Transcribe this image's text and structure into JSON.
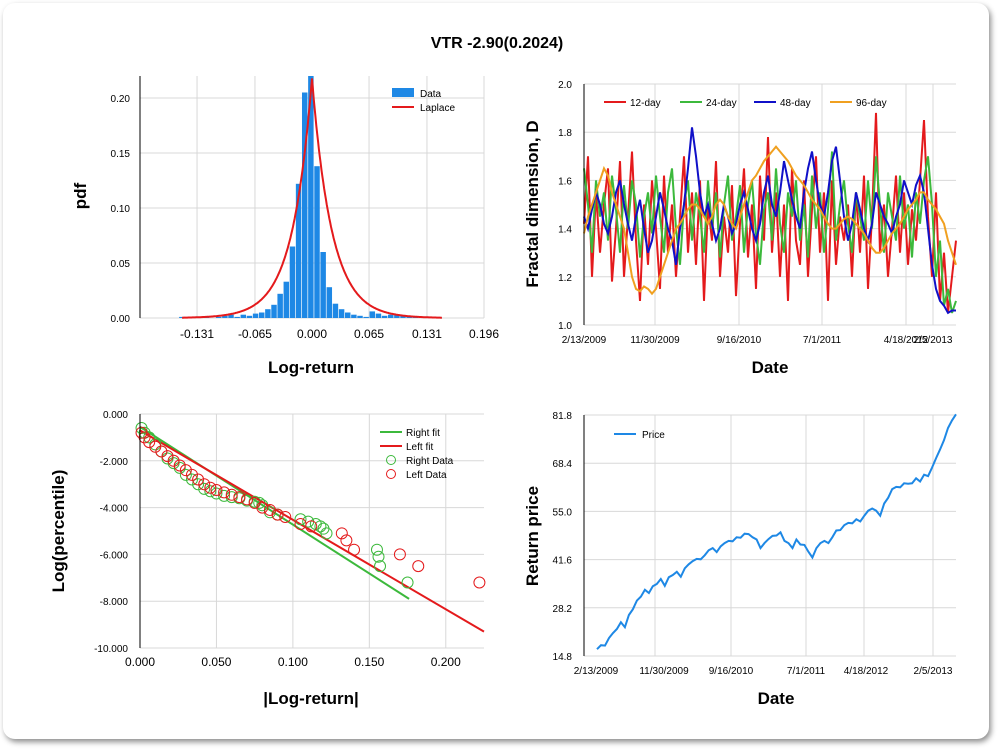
{
  "title": "VTR -2.90(0.2024)",
  "panels": {
    "hist": {
      "ylabel": "pdf",
      "xlabel": "Log-return",
      "yticks": [
        "0.00",
        "0.05",
        "0.10",
        "0.15",
        "0.20"
      ],
      "xticks": [
        "-0.131",
        "-0.065",
        "0.000",
        "0.065",
        "0.131",
        "0.196"
      ],
      "legend": [
        "Data",
        "Laplace"
      ]
    },
    "fractal": {
      "ylabel": "Fractal dimension, D",
      "xlabel": "Date",
      "yticks": [
        "1.0",
        "1.2",
        "1.4",
        "1.6",
        "1.8",
        "2.0"
      ],
      "xticks": [
        "2/13/2009",
        "11/30/2009",
        "9/16/2010",
        "7/1/2011",
        "4/18/2012",
        "2/5/2013"
      ],
      "legend": [
        "12-day",
        "24-day",
        "48-day",
        "96-day"
      ]
    },
    "tail": {
      "ylabel": "Log(percentile)",
      "xlabel": "|Log-return|",
      "yticks": [
        "-10.000",
        "-8.000",
        "-6.000",
        "-4.000",
        "-2.000",
        "0.000"
      ],
      "xticks": [
        "0.000",
        "0.050",
        "0.100",
        "0.150",
        "0.200"
      ],
      "legend": [
        "Right fit",
        "Left fit",
        "Right Data",
        "Left Data"
      ]
    },
    "price": {
      "ylabel": "Return price",
      "xlabel": "Date",
      "yticks": [
        "14.8",
        "28.2",
        "41.6",
        "55.0",
        "68.4",
        "81.8"
      ],
      "xticks": [
        "2/13/2009",
        "11/30/2009",
        "9/16/2010",
        "7/1/2011",
        "4/18/2012",
        "2/5/2013"
      ],
      "legend": [
        "Price"
      ]
    }
  },
  "colors": {
    "blue": "#1e88e5",
    "red": "#e41a1c",
    "green": "#3cb93c",
    "navy": "#1010c8",
    "orange": "#f0a020",
    "price": "#1e88e5"
  },
  "chart_data": [
    {
      "type": "bar",
      "title": "VTR -2.90(0.2024)",
      "xlabel": "Log-return",
      "ylabel": "pdf",
      "xlim": [
        -0.196,
        0.196
      ],
      "ylim": [
        0,
        0.22
      ],
      "bins": [
        -0.148,
        -0.141,
        -0.134,
        -0.127,
        -0.12,
        -0.113,
        -0.106,
        -0.099,
        -0.092,
        -0.085,
        -0.078,
        -0.071,
        -0.064,
        -0.057,
        -0.05,
        -0.043,
        -0.036,
        -0.029,
        -0.022,
        -0.015,
        -0.008,
        -0.001,
        0.006,
        0.013,
        0.02,
        0.027,
        0.034,
        0.041,
        0.048,
        0.055,
        0.062,
        0.069,
        0.076,
        0.083,
        0.09,
        0.097,
        0.104,
        0.111,
        0.118
      ],
      "values": [
        0.001,
        0,
        0.001,
        0,
        0.001,
        0,
        0.001,
        0.002,
        0.003,
        0.001,
        0.003,
        0.002,
        0.004,
        0.005,
        0.008,
        0.012,
        0.022,
        0.033,
        0.065,
        0.122,
        0.205,
        0.22,
        0.138,
        0.06,
        0.028,
        0.013,
        0.008,
        0.005,
        0.003,
        0.002,
        0.001,
        0.006,
        0.004,
        0.002,
        0.003,
        0.003,
        0.002,
        0.001,
        0.001
      ],
      "series": [
        {
          "name": "Data"
        },
        {
          "name": "Laplace",
          "scale": 0.0225
        }
      ]
    },
    {
      "type": "line",
      "xlabel": "Date",
      "ylabel": "Fractal dimension, D",
      "ylim": [
        1.0,
        2.0
      ],
      "x_range": [
        "2/13/2009",
        "5/1/2013"
      ],
      "series": [
        {
          "name": "12-day",
          "values": [
            1.42,
            1.7,
            1.2,
            1.55,
            1.3,
            1.5,
            1.65,
            1.18,
            1.4,
            1.68,
            1.2,
            1.45,
            1.72,
            1.35,
            1.1,
            1.5,
            1.25,
            1.6,
            1.4,
            1.15,
            1.62,
            1.3,
            1.5,
            1.2,
            1.45,
            1.7,
            1.3,
            1.55,
            1.25,
            1.6,
            1.1,
            1.5,
            1.35,
            1.68,
            1.2,
            1.45,
            1.3,
            1.58,
            1.12,
            1.42,
            1.65,
            1.28,
            1.5,
            1.15,
            1.62,
            1.35,
            1.78,
            1.3,
            1.55,
            1.2,
            1.5,
            1.1,
            1.65,
            1.35,
            1.25,
            1.6,
            1.2,
            1.48,
            1.7,
            1.3,
            1.55,
            1.1,
            1.6,
            1.25,
            1.45,
            1.35,
            1.5,
            1.2,
            1.55,
            1.3,
            1.62,
            1.15,
            1.45,
            1.88,
            1.3,
            1.5,
            1.2,
            1.4,
            1.62,
            1.3,
            1.55,
            1.25,
            1.48,
            1.35,
            1.6,
            1.85,
            1.45,
            1.2,
            1.55,
            1.1,
            1.3,
            1.05,
            1.2,
            1.35
          ]
        },
        {
          "name": "24-day",
          "values": [
            1.65,
            1.5,
            1.3,
            1.6,
            1.45,
            1.55,
            1.35,
            1.62,
            1.48,
            1.3,
            1.58,
            1.4,
            1.6,
            1.5,
            1.28,
            1.45,
            1.55,
            1.38,
            1.62,
            1.45,
            1.3,
            1.55,
            1.65,
            1.4,
            1.25,
            1.5,
            1.6,
            1.35,
            1.55,
            1.45,
            1.3,
            1.6,
            1.4,
            1.55,
            1.28,
            1.5,
            1.62,
            1.35,
            1.45,
            1.58,
            1.3,
            1.5,
            1.6,
            1.38,
            1.25,
            1.48,
            1.55,
            1.35,
            1.65,
            1.42,
            1.3,
            1.55,
            1.45,
            1.6,
            1.35,
            1.5,
            1.28,
            1.62,
            1.4,
            1.55,
            1.3,
            1.48,
            1.72,
            1.35,
            1.5,
            1.6,
            1.42,
            1.3,
            1.55,
            1.45,
            1.35,
            1.6,
            1.4,
            1.7,
            1.5,
            1.3,
            1.55,
            1.45,
            1.35,
            1.62,
            1.4,
            1.5,
            1.28,
            1.55,
            1.42,
            1.6,
            1.7,
            1.5,
            1.2,
            1.35,
            1.08,
            1.15,
            1.05,
            1.1
          ]
        },
        {
          "name": "48-day",
          "values": [
            1.45,
            1.4,
            1.48,
            1.55,
            1.5,
            1.42,
            1.38,
            1.45,
            1.55,
            1.6,
            1.5,
            1.42,
            1.35,
            1.45,
            1.52,
            1.4,
            1.3,
            1.35,
            1.45,
            1.55,
            1.48,
            1.4,
            1.35,
            1.25,
            1.4,
            1.5,
            1.65,
            1.82,
            1.7,
            1.55,
            1.45,
            1.5,
            1.42,
            1.35,
            1.4,
            1.5,
            1.45,
            1.38,
            1.42,
            1.5,
            1.55,
            1.48,
            1.4,
            1.35,
            1.42,
            1.55,
            1.62,
            1.5,
            1.45,
            1.55,
            1.68,
            1.6,
            1.52,
            1.45,
            1.4,
            1.55,
            1.65,
            1.72,
            1.6,
            1.5,
            1.45,
            1.55,
            1.68,
            1.74,
            1.6,
            1.45,
            1.35,
            1.42,
            1.55,
            1.48,
            1.4,
            1.35,
            1.42,
            1.55,
            1.5,
            1.45,
            1.42,
            1.38,
            1.45,
            1.5,
            1.6,
            1.55,
            1.5,
            1.58,
            1.62,
            1.55,
            1.4,
            1.25,
            1.15,
            1.1,
            1.08,
            1.05,
            1.06,
            1.06
          ]
        },
        {
          "name": "96-day",
          "values": [
            1.38,
            1.45,
            1.5,
            1.55,
            1.6,
            1.65,
            1.62,
            1.55,
            1.5,
            1.45,
            1.4,
            1.3,
            1.2,
            1.15,
            1.14,
            1.16,
            1.15,
            1.13,
            1.15,
            1.2,
            1.25,
            1.3,
            1.35,
            1.4,
            1.42,
            1.45,
            1.48,
            1.5,
            1.5,
            1.48,
            1.45,
            1.42,
            1.45,
            1.5,
            1.52,
            1.5,
            1.45,
            1.42,
            1.4,
            1.45,
            1.5,
            1.55,
            1.6,
            1.62,
            1.65,
            1.68,
            1.7,
            1.72,
            1.74,
            1.72,
            1.7,
            1.68,
            1.65,
            1.62,
            1.6,
            1.58,
            1.55,
            1.52,
            1.5,
            1.48,
            1.45,
            1.42,
            1.4,
            1.4,
            1.42,
            1.44,
            1.45,
            1.44,
            1.42,
            1.4,
            1.38,
            1.35,
            1.32,
            1.3,
            1.3,
            1.32,
            1.35,
            1.38,
            1.4,
            1.42,
            1.45,
            1.48,
            1.5,
            1.52,
            1.55,
            1.55,
            1.52,
            1.5,
            1.48,
            1.45,
            1.42,
            1.35,
            1.3,
            1.25
          ]
        }
      ]
    },
    {
      "type": "scatter",
      "xlabel": "|Log-return|",
      "ylabel": "Log(percentile)",
      "xlim": [
        0,
        0.225
      ],
      "ylim": [
        -10,
        0
      ],
      "series": [
        {
          "name": "Right fit",
          "line": [
            [
              0,
              -0.55
            ],
            [
              0.176,
              -7.9
            ]
          ]
        },
        {
          "name": "Left fit",
          "line": [
            [
              0,
              -0.7
            ],
            [
              0.225,
              -9.3
            ]
          ]
        },
        {
          "name": "Right Data",
          "points": [
            [
              0.001,
              -0.6
            ],
            [
              0.003,
              -0.8
            ],
            [
              0.006,
              -1.0
            ],
            [
              0.01,
              -1.3
            ],
            [
              0.014,
              -1.6
            ],
            [
              0.018,
              -1.9
            ],
            [
              0.022,
              -2.1
            ],
            [
              0.026,
              -2.3
            ],
            [
              0.03,
              -2.6
            ],
            [
              0.034,
              -2.8
            ],
            [
              0.038,
              -3.0
            ],
            [
              0.042,
              -3.2
            ],
            [
              0.046,
              -3.3
            ],
            [
              0.05,
              -3.4
            ],
            [
              0.055,
              -3.5
            ],
            [
              0.06,
              -3.55
            ],
            [
              0.065,
              -3.6
            ],
            [
              0.07,
              -3.7
            ],
            [
              0.075,
              -3.75
            ],
            [
              0.078,
              -3.8
            ],
            [
              0.08,
              -3.9
            ],
            [
              0.085,
              -4.2
            ],
            [
              0.09,
              -4.3
            ],
            [
              0.105,
              -4.5
            ],
            [
              0.11,
              -4.6
            ],
            [
              0.115,
              -4.7
            ],
            [
              0.118,
              -4.8
            ],
            [
              0.12,
              -4.9
            ],
            [
              0.122,
              -5.1
            ],
            [
              0.155,
              -5.8
            ],
            [
              0.156,
              -6.1
            ],
            [
              0.157,
              -6.5
            ],
            [
              0.175,
              -7.2
            ]
          ]
        },
        {
          "name": "Left Data",
          "points": [
            [
              0.001,
              -0.8
            ],
            [
              0.003,
              -1.0
            ],
            [
              0.006,
              -1.2
            ],
            [
              0.01,
              -1.4
            ],
            [
              0.014,
              -1.6
            ],
            [
              0.018,
              -1.8
            ],
            [
              0.022,
              -2.0
            ],
            [
              0.026,
              -2.2
            ],
            [
              0.03,
              -2.4
            ],
            [
              0.034,
              -2.6
            ],
            [
              0.038,
              -2.8
            ],
            [
              0.042,
              -3.0
            ],
            [
              0.046,
              -3.15
            ],
            [
              0.05,
              -3.25
            ],
            [
              0.055,
              -3.35
            ],
            [
              0.06,
              -3.45
            ],
            [
              0.065,
              -3.55
            ],
            [
              0.07,
              -3.65
            ],
            [
              0.075,
              -3.8
            ],
            [
              0.08,
              -4.0
            ],
            [
              0.085,
              -4.1
            ],
            [
              0.09,
              -4.3
            ],
            [
              0.095,
              -4.4
            ],
            [
              0.105,
              -4.7
            ],
            [
              0.112,
              -4.8
            ],
            [
              0.132,
              -5.1
            ],
            [
              0.135,
              -5.4
            ],
            [
              0.14,
              -5.8
            ],
            [
              0.17,
              -6.0
            ],
            [
              0.182,
              -6.5
            ],
            [
              0.222,
              -7.2
            ]
          ]
        }
      ]
    },
    {
      "type": "line",
      "xlabel": "Date",
      "ylabel": "Return price",
      "ylim": [
        14.8,
        81.8
      ],
      "x_range": [
        "2/13/2009",
        "5/1/2013"
      ],
      "series": [
        {
          "name": "Price",
          "values": [
            16.5,
            18,
            17.5,
            20,
            21,
            22.5,
            24,
            23,
            26,
            28,
            30,
            31.5,
            33,
            32.5,
            34,
            35,
            36,
            34.5,
            36.5,
            37.5,
            38,
            37,
            39,
            40.5,
            41,
            42,
            41.5,
            43,
            44,
            45,
            43.5,
            45.5,
            46,
            47,
            46.5,
            48,
            47.5,
            49,
            48.5,
            48,
            47,
            45,
            46,
            47.5,
            48,
            48.5,
            49,
            47,
            46,
            45,
            47,
            46,
            45.5,
            44,
            42,
            45,
            46,
            47,
            46,
            48,
            49.5,
            50,
            51,
            52,
            51.5,
            53,
            52,
            54,
            55,
            56,
            55,
            54,
            57,
            59,
            61,
            62,
            61.5,
            63,
            62.5,
            63,
            64,
            63.5,
            65,
            65,
            67,
            70,
            72,
            75,
            78,
            80.5,
            81.8
          ]
        }
      ]
    }
  ]
}
